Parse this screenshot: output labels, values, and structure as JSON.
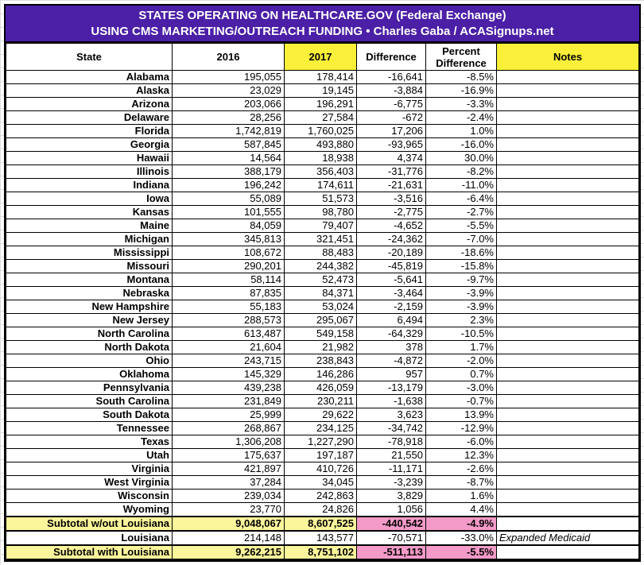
{
  "title": {
    "line1": "STATES OPERATING ON HEALTHCARE.GOV (Federal Exchange)",
    "line2": "USING CMS MARKETING/OUTREACH FUNDING  •  Charles Gaba / ACASignups.net"
  },
  "headers": [
    "State",
    "2016",
    "2017",
    "Difference",
    "Percent Difference",
    "Notes"
  ],
  "colors": {
    "title_bg": "#4b1fa6",
    "highlight_yellow": "#faf039",
    "subtotal_yellow": "#fbf59b",
    "negative_pink": "#f49ac8"
  },
  "rows": [
    [
      "Alabama",
      "195,055",
      "178,414",
      "-16,641",
      "-8.5%",
      ""
    ],
    [
      "Alaska",
      "23,029",
      "19,145",
      "-3,884",
      "-16.9%",
      ""
    ],
    [
      "Arizona",
      "203,066",
      "196,291",
      "-6,775",
      "-3.3%",
      ""
    ],
    [
      "Delaware",
      "28,256",
      "27,584",
      "-672",
      "-2.4%",
      ""
    ],
    [
      "Florida",
      "1,742,819",
      "1,760,025",
      "17,206",
      "1.0%",
      ""
    ],
    [
      "Georgia",
      "587,845",
      "493,880",
      "-93,965",
      "-16.0%",
      ""
    ],
    [
      "Hawaii",
      "14,564",
      "18,938",
      "4,374",
      "30.0%",
      ""
    ],
    [
      "Illinois",
      "388,179",
      "356,403",
      "-31,776",
      "-8.2%",
      ""
    ],
    [
      "Indiana",
      "196,242",
      "174,611",
      "-21,631",
      "-11.0%",
      ""
    ],
    [
      "Iowa",
      "55,089",
      "51,573",
      "-3,516",
      "-6.4%",
      ""
    ],
    [
      "Kansas",
      "101,555",
      "98,780",
      "-2,775",
      "-2.7%",
      ""
    ],
    [
      "Maine",
      "84,059",
      "79,407",
      "-4,652",
      "-5.5%",
      ""
    ],
    [
      "Michigan",
      "345,813",
      "321,451",
      "-24,362",
      "-7.0%",
      ""
    ],
    [
      "Mississippi",
      "108,672",
      "88,483",
      "-20,189",
      "-18.6%",
      ""
    ],
    [
      "Missouri",
      "290,201",
      "244,382",
      "-45,819",
      "-15.8%",
      ""
    ],
    [
      "Montana",
      "58,114",
      "52,473",
      "-5,641",
      "-9.7%",
      ""
    ],
    [
      "Nebraska",
      "87,835",
      "84,371",
      "-3,464",
      "-3.9%",
      ""
    ],
    [
      "New Hampshire",
      "55,183",
      "53,024",
      "-2,159",
      "-3.9%",
      ""
    ],
    [
      "New Jersey",
      "288,573",
      "295,067",
      "6,494",
      "2.3%",
      ""
    ],
    [
      "North Carolina",
      "613,487",
      "549,158",
      "-64,329",
      "-10.5%",
      ""
    ],
    [
      "North Dakota",
      "21,604",
      "21,982",
      "378",
      "1.7%",
      ""
    ],
    [
      "Ohio",
      "243,715",
      "238,843",
      "-4,872",
      "-2.0%",
      ""
    ],
    [
      "Oklahoma",
      "145,329",
      "146,286",
      "957",
      "0.7%",
      ""
    ],
    [
      "Pennsylvania",
      "439,238",
      "426,059",
      "-13,179",
      "-3.0%",
      ""
    ],
    [
      "South Carolina",
      "231,849",
      "230,211",
      "-1,638",
      "-0.7%",
      ""
    ],
    [
      "South Dakota",
      "25,999",
      "29,622",
      "3,623",
      "13.9%",
      ""
    ],
    [
      "Tennessee",
      "268,867",
      "234,125",
      "-34,742",
      "-12.9%",
      ""
    ],
    [
      "Texas",
      "1,306,208",
      "1,227,290",
      "-78,918",
      "-6.0%",
      ""
    ],
    [
      "Utah",
      "175,637",
      "197,187",
      "21,550",
      "12.3%",
      ""
    ],
    [
      "Virginia",
      "421,897",
      "410,726",
      "-11,171",
      "-2.6%",
      ""
    ],
    [
      "West Virginia",
      "37,284",
      "34,045",
      "-3,239",
      "-8.7%",
      ""
    ],
    [
      "Wisconsin",
      "239,034",
      "242,863",
      "3,829",
      "1.6%",
      ""
    ],
    [
      "Wyoming",
      "23,770",
      "24,826",
      "1,056",
      "4.4%",
      ""
    ]
  ],
  "subtotal_without": [
    "Subtotal w/out Louisiana",
    "9,048,067",
    "8,607,525",
    "-440,542",
    "-4.9%",
    ""
  ],
  "louisiana": [
    "Louisiana",
    "214,148",
    "143,577",
    "-70,571",
    "-33.0%",
    "Expanded Medicaid"
  ],
  "subtotal_with": [
    "Subtotal with Louisiana",
    "9,262,215",
    "8,751,102",
    "-511,113",
    "-5.5%",
    ""
  ]
}
